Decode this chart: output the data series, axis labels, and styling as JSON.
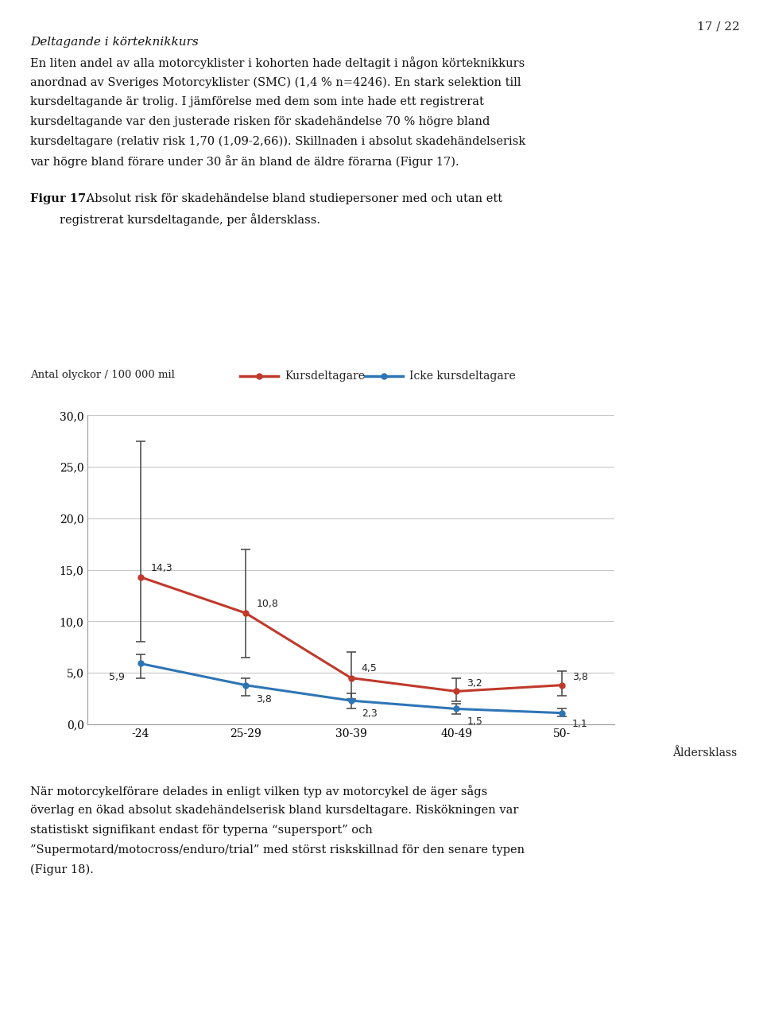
{
  "page_number": "17 / 22",
  "title_italic": "Deltagande i körteknikkurs",
  "body_lines": [
    "En liten andel av alla motorcyklister i kohorten hade deltagit i någon körteknikkurs",
    "anordnad av Sveriges Motorcyklister (SMC) (1,4 % n=4246). En stark selektion till",
    "kursdeltagande är trolig. I jämförelse med dem som inte hade ett registrerat",
    "kursdeltagande var den justerade risken för skadehändelse 70 % högre bland",
    "kursdeltagare (relativ risk 1,70 (1,09-2,66)). Skillnaden i absolut skadehändelserisk",
    "var högre bland förare under 30 år än bland de äldre förarna (Figur 17)."
  ],
  "fig_caption_bold": "Figur 17.",
  "fig_caption_rest": " Absolut risk för skadehändelse bland studiepersoner med och utan ett",
  "fig_caption_line2": "        registrerat kursdeltagande, per åldersklass.",
  "ylabel_text": "Antal olyckor / 100 000 mil",
  "legend_red_label": "Kursdeltagare",
  "legend_blue_label": "Icke kursdeltagare",
  "xlabel_text": "Åldersklass",
  "x_categories": [
    "-24",
    "25-29",
    "30-39",
    "40-49",
    "50-"
  ],
  "red_values": [
    14.3,
    10.8,
    4.5,
    3.2,
    3.8
  ],
  "blue_values": [
    5.9,
    3.8,
    2.3,
    1.5,
    1.1
  ],
  "red_err_upper": [
    13.2,
    6.2,
    2.5,
    1.3,
    1.4
  ],
  "red_err_lower": [
    6.3,
    4.3,
    2.0,
    1.0,
    1.0
  ],
  "blue_err_upper": [
    0.9,
    0.7,
    0.7,
    0.5,
    0.4
  ],
  "blue_err_lower": [
    1.4,
    1.0,
    0.8,
    0.5,
    0.3
  ],
  "ylim": [
    0.0,
    30.0
  ],
  "yticks": [
    0.0,
    5.0,
    10.0,
    15.0,
    20.0,
    25.0,
    30.0
  ],
  "red_color": "#c0392b",
  "blue_color": "#2e75b6",
  "grid_color": "#c8c8c8",
  "bottom_lines": [
    "När motorcykelförare delades in enligt vilken typ av motorcykel de äger sågs",
    "överlag en ökad absolut skadehändelserisk bland kursdeltagare. Riskökningen var",
    "statistiskt signifikant endast för typerna “supersport” och",
    "”Supermotard/motocross/enduro/trial” med störst riskskillnad för den senare typen",
    "(Figur 18)."
  ]
}
